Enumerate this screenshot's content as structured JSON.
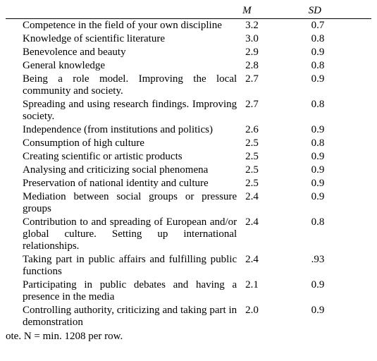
{
  "table": {
    "columns": {
      "label": "",
      "m": "M",
      "sd": "SD"
    },
    "rows": [
      {
        "label": "Competence in the field of your own discipline",
        "m": "3.2",
        "sd": "0.7"
      },
      {
        "label": "Knowledge of scientific literature",
        "m": "3.0",
        "sd": "0.8"
      },
      {
        "label": "Benevolence and beauty",
        "m": "2.9",
        "sd": "0.9"
      },
      {
        "label": "General knowledge",
        "m": "2.8",
        "sd": "0.8"
      },
      {
        "label": "Being a role model. Improving the local community and society.",
        "m": "2.7",
        "sd": "0.9"
      },
      {
        "label": "Spreading and using research findings. Improving society.",
        "m": "2.7",
        "sd": "0.8"
      },
      {
        "label": "Independence (from institutions and politics)",
        "m": "2.6",
        "sd": "0.9"
      },
      {
        "label": "Consumption of high culture",
        "m": "2.5",
        "sd": "0.8"
      },
      {
        "label": "Creating scientific or artistic products",
        "m": "2.5",
        "sd": "0.9"
      },
      {
        "label": "Analysing and criticizing social phenomena",
        "m": "2.5",
        "sd": "0.9"
      },
      {
        "label": "Preservation of national identity and culture",
        "m": "2.5",
        "sd": "0.9"
      },
      {
        "label": "Mediation between social groups or pressure groups",
        "m": "2.4",
        "sd": "0.9"
      },
      {
        "label": "Contribution to and spreading of European and/or global culture. Setting up international relationships.",
        "m": "2.4",
        "sd": "0.8"
      },
      {
        "label": "Taking part in public affairs and fulfilling public functions",
        "m": "2.4",
        "sd": ".93"
      },
      {
        "label": "Participating in public debates and having a presence in the media",
        "m": "2.1",
        "sd": "0.9"
      },
      {
        "label": "Controlling authority, criticizing and taking part in demonstration",
        "m": "2.0",
        "sd": "0.9"
      }
    ]
  },
  "note_label": "ote.",
  "note_text": "N = min. 1208 per row."
}
